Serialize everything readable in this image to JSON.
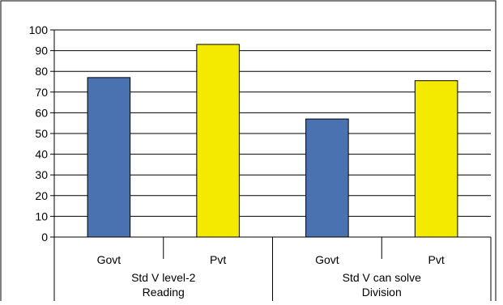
{
  "chart_data": {
    "type": "bar",
    "categories": [
      {
        "label": "Govt",
        "group_index": 0
      },
      {
        "label": "Pvt",
        "group_index": 0
      },
      {
        "label": "Govt",
        "group_index": 1
      },
      {
        "label": "Pvt",
        "group_index": 1
      }
    ],
    "groups": [
      [
        "Std V level-2",
        "Reading"
      ],
      [
        "Std V can solve",
        "Division"
      ]
    ],
    "values": [
      77,
      93,
      57,
      75.5
    ],
    "bar_colors": [
      "#4a72b0",
      "#f3ea00",
      "#4a72b0",
      "#f3ea00"
    ],
    "ylim": [
      0,
      100
    ],
    "y_ticks": [
      0,
      10,
      20,
      30,
      40,
      50,
      60,
      70,
      80,
      90,
      100
    ],
    "grid": "horizontal",
    "title": "",
    "xlabel": "",
    "ylabel": ""
  }
}
